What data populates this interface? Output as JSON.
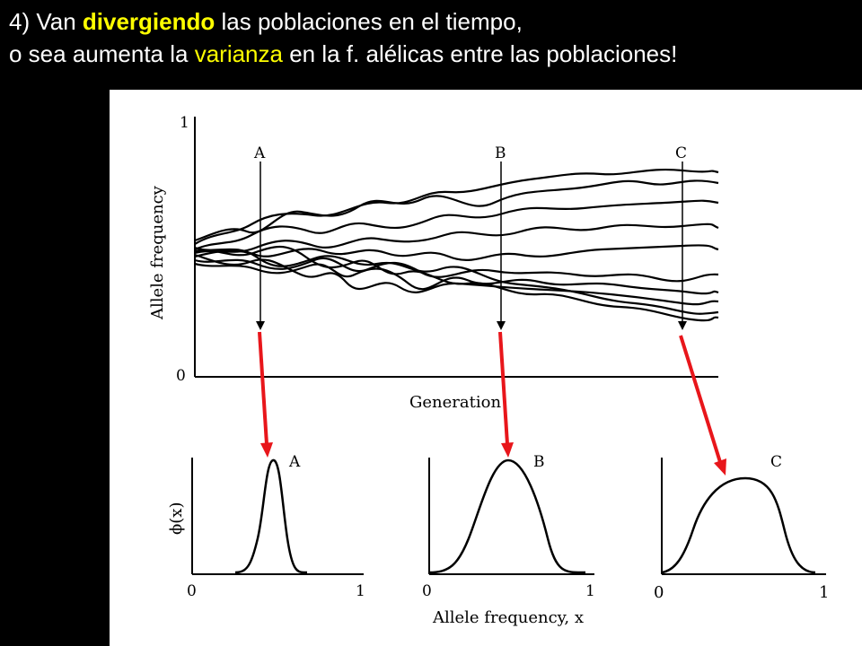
{
  "heading": {
    "line1_prefix": "4) Van ",
    "line1_highlight": "divergiendo",
    "line1_suffix": " las poblaciones  en el tiempo,",
    "line2_prefix": "o sea aumenta la ",
    "line2_highlight": "varianza",
    "line2_suffix": " en la f. alélicas entre las poblaciones!"
  },
  "colors": {
    "background": "#000000",
    "heading_text": "#ffffff",
    "highlight": "#ffff00",
    "arrow": "#e8161b",
    "figure_bg": "#ffffff"
  },
  "top_plot": {
    "ylabel": "Allele frequency",
    "xlabel": "Generation",
    "y_tick_max": "1",
    "y_tick_min": "0",
    "markers": [
      "A",
      "B",
      "C"
    ]
  },
  "bottom_plots": {
    "ylabel": "ϕ(x)",
    "xlabel": "Allele frequency, x",
    "panels": [
      {
        "label": "A",
        "tick_min": "0",
        "tick_max": "1"
      },
      {
        "label": "B",
        "tick_min": "0",
        "tick_max": "1"
      },
      {
        "label": "C",
        "tick_min": "0",
        "tick_max": "1"
      }
    ]
  }
}
